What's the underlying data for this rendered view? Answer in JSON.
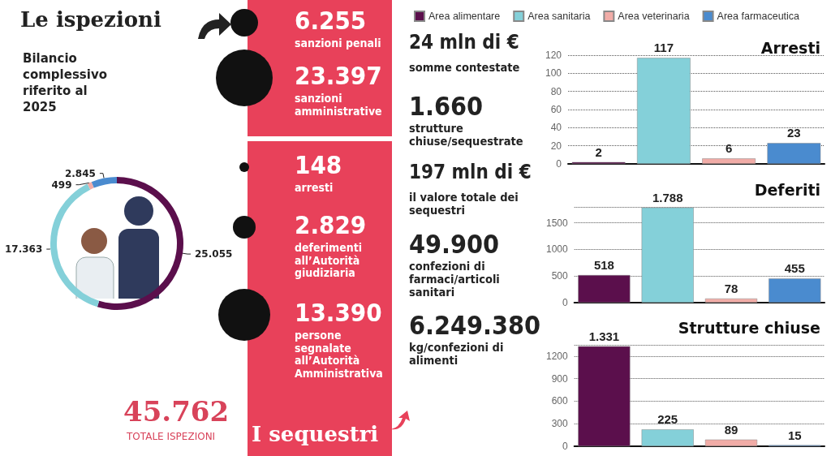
{
  "chart_data": [
    {
      "type": "donut",
      "title": "Le ispezioni",
      "subtitle": "Bilancio complessivo riferito al 2025",
      "categories": [
        null,
        null,
        null,
        null
      ],
      "values": [
        25055,
        17363,
        499,
        2845
      ],
      "colors": [
        "#5b0f4c",
        "#84d0d9",
        "#f1aca7",
        "#4a8bcf"
      ],
      "value_labels": [
        "25.055",
        "17.363",
        "499",
        "2.845"
      ],
      "annotations": [
        "45.762",
        "TOTALE ISPEZIONI"
      ]
    },
    {
      "type": "other",
      "annotations": [
        "6.255",
        "sanzioni penali",
        "23.397",
        "sanzioni amministrative",
        "148",
        "arresti",
        "2.829",
        "deferimenti all’Autorità giudiziaria",
        "13.390",
        "persone segnalate all’Autorità Amministrativa"
      ]
    },
    {
      "type": "other",
      "title": "I sequestri",
      "annotations": [
        "24 mln di €",
        "somme contestate",
        "1.660",
        "strutture chiuse/sequestrate",
        "197 mln di €",
        "il valore totale dei sequestri",
        "49.900",
        "confezioni di farmaci/articoli sanitari",
        "6.249.380",
        "kg/confezioni di alimenti"
      ]
    },
    {
      "type": "bar",
      "title": "Arresti",
      "categories": [
        null
      ],
      "legend": "top",
      "grid": "y",
      "ylim": [
        0,
        120
      ],
      "yticks": [
        0,
        20,
        40,
        60,
        80,
        100,
        120
      ],
      "series": [
        {
          "name": "Area alimentare",
          "color": "#5b0f4c",
          "values": [
            2
          ],
          "value_labels": [
            "2"
          ]
        },
        {
          "name": "Area sanitaria",
          "color": "#84d0d9",
          "values": [
            117
          ],
          "value_labels": [
            "117"
          ]
        },
        {
          "name": "Area veterinaria",
          "color": "#f1aca7",
          "values": [
            6
          ],
          "value_labels": [
            "6"
          ]
        },
        {
          "name": "Area farmaceutica",
          "color": "#4a8bcf",
          "values": [
            23
          ],
          "value_labels": [
            "23"
          ]
        }
      ]
    },
    {
      "type": "bar",
      "title": "Deferiti",
      "categories": [
        null
      ],
      "grid": "y",
      "ylim": [
        0,
        1800
      ],
      "yticks": [
        0,
        500,
        1000,
        1500
      ],
      "series": [
        {
          "color": "#5b0f4c",
          "values": [
            518
          ],
          "value_labels": [
            "518"
          ]
        },
        {
          "color": "#84d0d9",
          "values": [
            1788
          ],
          "value_labels": [
            "1.788"
          ]
        },
        {
          "color": "#f1aca7",
          "values": [
            78
          ],
          "value_labels": [
            "78"
          ]
        },
        {
          "color": "#4a8bcf",
          "values": [
            455
          ],
          "value_labels": [
            "455"
          ]
        }
      ]
    },
    {
      "type": "bar",
      "title": "Strutture chiuse",
      "categories": [
        null
      ],
      "grid": "y",
      "ylim": [
        0,
        1350
      ],
      "yticks": [
        0,
        300,
        600,
        900,
        1200
      ],
      "series": [
        {
          "color": "#5b0f4c",
          "values": [
            1331
          ],
          "value_labels": [
            "1.331"
          ]
        },
        {
          "color": "#84d0d9",
          "values": [
            225
          ],
          "value_labels": [
            "225"
          ]
        },
        {
          "color": "#f1aca7",
          "values": [
            89
          ],
          "value_labels": [
            "89"
          ]
        },
        {
          "color": "#4a8bcf",
          "values": [
            15
          ],
          "value_labels": [
            "15"
          ]
        }
      ]
    }
  ]
}
